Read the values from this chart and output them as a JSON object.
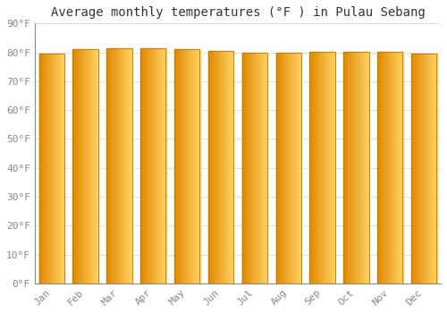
{
  "title": "Average monthly temperatures (°F ) in Pulau Sebang",
  "months": [
    "Jan",
    "Feb",
    "Mar",
    "Apr",
    "May",
    "Jun",
    "Jul",
    "Aug",
    "Sep",
    "Oct",
    "Nov",
    "Dec"
  ],
  "values": [
    79.5,
    81.1,
    81.5,
    81.5,
    81.1,
    80.6,
    79.9,
    79.9,
    80.1,
    80.1,
    80.1,
    79.7
  ],
  "ylim": [
    0,
    90
  ],
  "yticks": [
    0,
    10,
    20,
    30,
    40,
    50,
    60,
    70,
    80,
    90
  ],
  "ytick_labels": [
    "0°F",
    "10°F",
    "20°F",
    "30°F",
    "40°F",
    "50°F",
    "60°F",
    "70°F",
    "80°F",
    "90°F"
  ],
  "bar_color_left": "#E08800",
  "bar_color_right": "#FFD060",
  "bar_edge_color": "#C07800",
  "background_color": "#FFFFFF",
  "grid_color": "#DDDDDD",
  "title_fontsize": 10,
  "tick_fontsize": 8,
  "title_font": "monospace",
  "tick_font": "monospace",
  "tick_color": "#888888",
  "title_color": "#333333"
}
